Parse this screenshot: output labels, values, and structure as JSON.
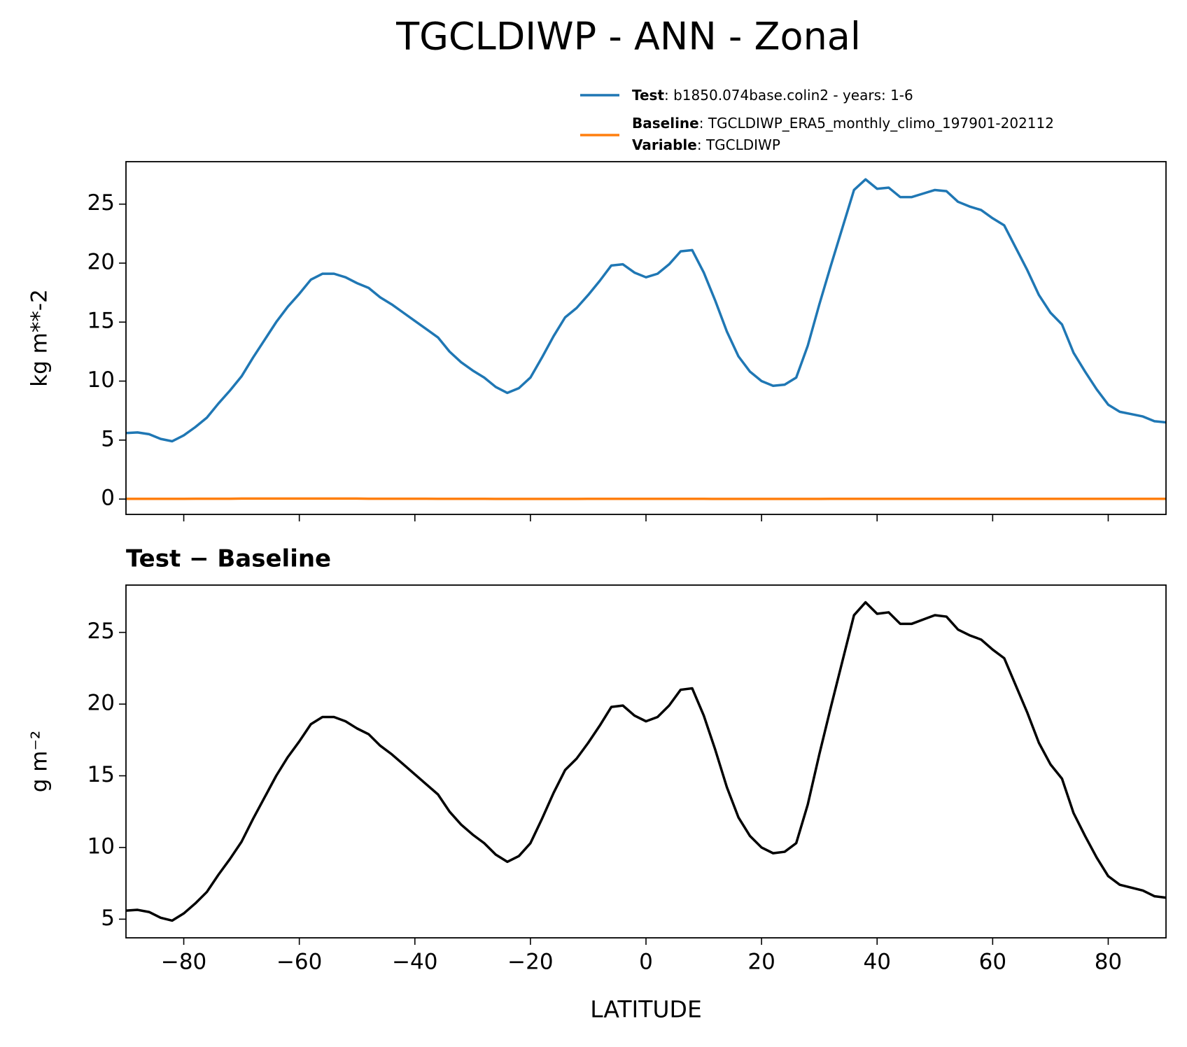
{
  "chart_data": [
    {
      "type": "line",
      "suptitle": "TGCLDIWP - ANN - Zonal",
      "ylabel": "kg m**-2",
      "x": [
        -90,
        -88,
        -86,
        -84,
        -82,
        -80,
        -78,
        -76,
        -74,
        -72,
        -70,
        -68,
        -66,
        -64,
        -62,
        -60,
        -58,
        -56,
        -54,
        -52,
        -50,
        -48,
        -46,
        -44,
        -42,
        -40,
        -38,
        -36,
        -34,
        -32,
        -30,
        -28,
        -26,
        -24,
        -22,
        -20,
        -18,
        -16,
        -14,
        -12,
        -10,
        -8,
        -6,
        -4,
        -2,
        0,
        2,
        4,
        6,
        8,
        10,
        12,
        14,
        16,
        18,
        20,
        22,
        24,
        26,
        28,
        30,
        32,
        34,
        36,
        38,
        40,
        42,
        44,
        46,
        48,
        50,
        52,
        54,
        56,
        58,
        60,
        62,
        64,
        66,
        68,
        70,
        72,
        74,
        76,
        78,
        80,
        82,
        84,
        86,
        88,
        90
      ],
      "series": [
        {
          "name": "Test",
          "description": ": b1850.074base.colin2 - years: 1-6",
          "color": "#1f77b4",
          "values": [
            5.6,
            5.65,
            5.5,
            5.1,
            4.9,
            5.4,
            6.1,
            6.9,
            8.1,
            9.2,
            10.4,
            12.0,
            13.5,
            15.0,
            16.3,
            17.4,
            18.6,
            19.1,
            19.1,
            18.8,
            18.3,
            17.9,
            17.1,
            16.5,
            15.8,
            15.1,
            14.4,
            13.7,
            12.5,
            11.6,
            10.9,
            10.3,
            9.5,
            9.0,
            9.4,
            10.3,
            12.0,
            13.8,
            15.4,
            16.2,
            17.3,
            18.5,
            19.8,
            19.9,
            19.2,
            18.8,
            19.1,
            19.9,
            21.0,
            21.1,
            19.2,
            16.8,
            14.2,
            12.1,
            10.8,
            10.0,
            9.6,
            9.7,
            10.3,
            13.0,
            16.5,
            19.8,
            23.0,
            26.2,
            27.1,
            26.3,
            26.4,
            25.6,
            25.6,
            25.9,
            26.2,
            26.1,
            25.2,
            24.8,
            24.5,
            23.8,
            23.2,
            21.3,
            19.4,
            17.3,
            15.8,
            14.8,
            12.4,
            10.8,
            9.3,
            8.0,
            7.4,
            7.2,
            7.0,
            6.6,
            6.5
          ]
        },
        {
          "name": "Baseline",
          "description": ": TGCLDIWP_ERA5_monthly_climo_197901-202112",
          "variable_name": "Variable",
          "variable": ": TGCLDIWP",
          "color": "#ff7f0e",
          "values": [
            0.02,
            0.02,
            0.02,
            0.02,
            0.02,
            0.02,
            0.03,
            0.03,
            0.03,
            0.03,
            0.04,
            0.04,
            0.04,
            0.04,
            0.04,
            0.04,
            0.04,
            0.04,
            0.04,
            0.04,
            0.04,
            0.03,
            0.03,
            0.03,
            0.03,
            0.03,
            0.03,
            0.02,
            0.02,
            0.02,
            0.02,
            0.02,
            0.01,
            0.01,
            0.01,
            0.01,
            0.01,
            0.01,
            0.01,
            0.01,
            0.02,
            0.02,
            0.02,
            0.02,
            0.02,
            0.02,
            0.02,
            0.02,
            0.02,
            0.02,
            0.02,
            0.01,
            0.01,
            0.01,
            0.01,
            0.01,
            0.01,
            0.01,
            0.01,
            0.01,
            0.01,
            0.02,
            0.02,
            0.02,
            0.02,
            0.02,
            0.02,
            0.02,
            0.02,
            0.02,
            0.02,
            0.02,
            0.02,
            0.02,
            0.02,
            0.02,
            0.02,
            0.02,
            0.02,
            0.02,
            0.02,
            0.02,
            0.02,
            0.02,
            0.02,
            0.02,
            0.02,
            0.02,
            0.02,
            0.02,
            0.02
          ]
        }
      ],
      "xlim": [
        -90,
        90
      ],
      "xticks": [
        -80,
        -60,
        -40,
        -20,
        0,
        20,
        40,
        60,
        80
      ],
      "ylim": [
        -1.3,
        28.6
      ],
      "yticks": [
        0,
        5,
        10,
        15,
        20,
        25
      ]
    },
    {
      "type": "line",
      "title": "Test − Baseline",
      "xlabel": "LATITUDE",
      "ylabel": "g m⁻²",
      "x": [
        -90,
        -88,
        -86,
        -84,
        -82,
        -80,
        -78,
        -76,
        -74,
        -72,
        -70,
        -68,
        -66,
        -64,
        -62,
        -60,
        -58,
        -56,
        -54,
        -52,
        -50,
        -48,
        -46,
        -44,
        -42,
        -40,
        -38,
        -36,
        -34,
        -32,
        -30,
        -28,
        -26,
        -24,
        -22,
        -20,
        -18,
        -16,
        -14,
        -12,
        -10,
        -8,
        -6,
        -4,
        -2,
        0,
        2,
        4,
        6,
        8,
        10,
        12,
        14,
        16,
        18,
        20,
        22,
        24,
        26,
        28,
        30,
        32,
        34,
        36,
        38,
        40,
        42,
        44,
        46,
        48,
        50,
        52,
        54,
        56,
        58,
        60,
        62,
        64,
        66,
        68,
        70,
        72,
        74,
        76,
        78,
        80,
        82,
        84,
        86,
        88,
        90
      ],
      "color": "#000000",
      "values": [
        5.6,
        5.65,
        5.5,
        5.1,
        4.9,
        5.4,
        6.1,
        6.9,
        8.1,
        9.2,
        10.4,
        12.0,
        13.5,
        15.0,
        16.3,
        17.4,
        18.6,
        19.1,
        19.1,
        18.8,
        18.3,
        17.9,
        17.1,
        16.5,
        15.8,
        15.1,
        14.4,
        13.7,
        12.5,
        11.6,
        10.9,
        10.3,
        9.5,
        9.0,
        9.4,
        10.3,
        12.0,
        13.8,
        15.4,
        16.2,
        17.3,
        18.5,
        19.8,
        19.9,
        19.2,
        18.8,
        19.1,
        19.9,
        21.0,
        21.1,
        19.2,
        16.8,
        14.2,
        12.1,
        10.8,
        10.0,
        9.6,
        9.7,
        10.3,
        13.0,
        16.5,
        19.8,
        23.0,
        26.2,
        27.1,
        26.3,
        26.4,
        25.6,
        25.6,
        25.9,
        26.2,
        26.1,
        25.2,
        24.8,
        24.5,
        23.8,
        23.2,
        21.3,
        19.4,
        17.3,
        15.8,
        14.8,
        12.4,
        10.8,
        9.3,
        8.0,
        7.4,
        7.2,
        7.0,
        6.6,
        6.5
      ],
      "xlim": [
        -90,
        90
      ],
      "xticks": [
        {
          "value": -80,
          "label": "−80"
        },
        {
          "value": -60,
          "label": "−60"
        },
        {
          "value": -40,
          "label": "−40"
        },
        {
          "value": -20,
          "label": "−20"
        },
        0,
        20,
        40,
        60,
        80
      ],
      "ylim": [
        3.7,
        28.3
      ],
      "yticks": [
        5,
        10,
        15,
        20,
        25
      ]
    }
  ]
}
